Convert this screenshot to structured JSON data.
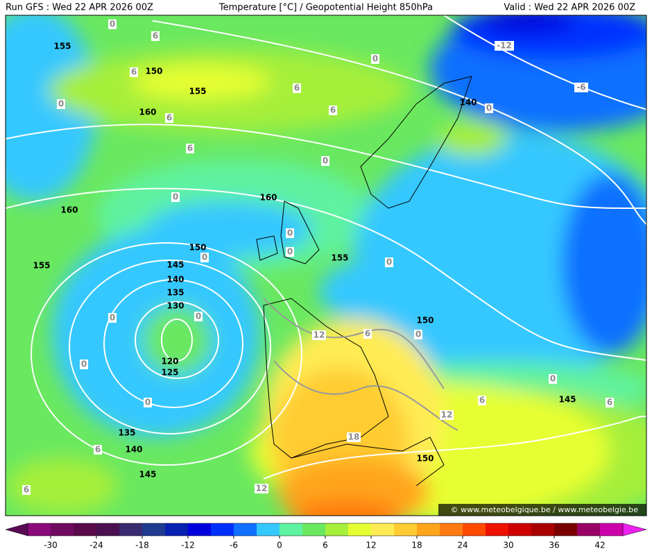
{
  "header": {
    "run": "Run GFS : Wed 22 APR 2026 00Z",
    "title": "Temperature [°C] / Geopotential Height 850hPa",
    "valid": "Valid : Wed 22 APR 2026 00Z"
  },
  "height_labels": [
    155,
    150,
    155,
    160,
    160,
    160,
    150,
    155,
    155,
    145,
    140,
    135,
    130,
    120,
    125,
    150,
    145,
    135,
    140,
    150,
    145,
    140
  ],
  "temperature_labels": [
    0,
    6,
    6,
    0,
    6,
    6,
    0,
    6,
    6,
    0,
    0,
    0,
    0,
    0,
    0,
    0,
    0,
    0,
    0,
    12,
    6,
    0,
    0,
    6,
    6,
    12,
    18,
    12,
    6,
    6,
    -12,
    -6,
    0
  ],
  "colorbar": {
    "lim": [
      -33,
      45
    ],
    "ticks": [
      -30,
      -24,
      -18,
      -12,
      -6,
      0,
      6,
      12,
      18,
      24,
      30,
      36,
      42
    ],
    "low_color": "#5a0a55",
    "high_color": "#ee22ee",
    "colors": [
      "#8a0a7a",
      "#700a60",
      "#5a0a4a",
      "#4a1050",
      "#3a2a70",
      "#203a90",
      "#0820b0",
      "#0000dd",
      "#0030ff",
      "#1070ff",
      "#35c8ff",
      "#5ff2a0",
      "#6ae860",
      "#a6ef3a",
      "#e6ff33",
      "#ffec55",
      "#ffcc33",
      "#ffa51c",
      "#ff7a10",
      "#ff4a00",
      "#ee1100",
      "#cc0000",
      "#aa0000",
      "#7a0000",
      "#990066",
      "#cc00aa"
    ]
  },
  "watermark": "© www.meteobelgique.be / www.meteobelgie.be"
}
